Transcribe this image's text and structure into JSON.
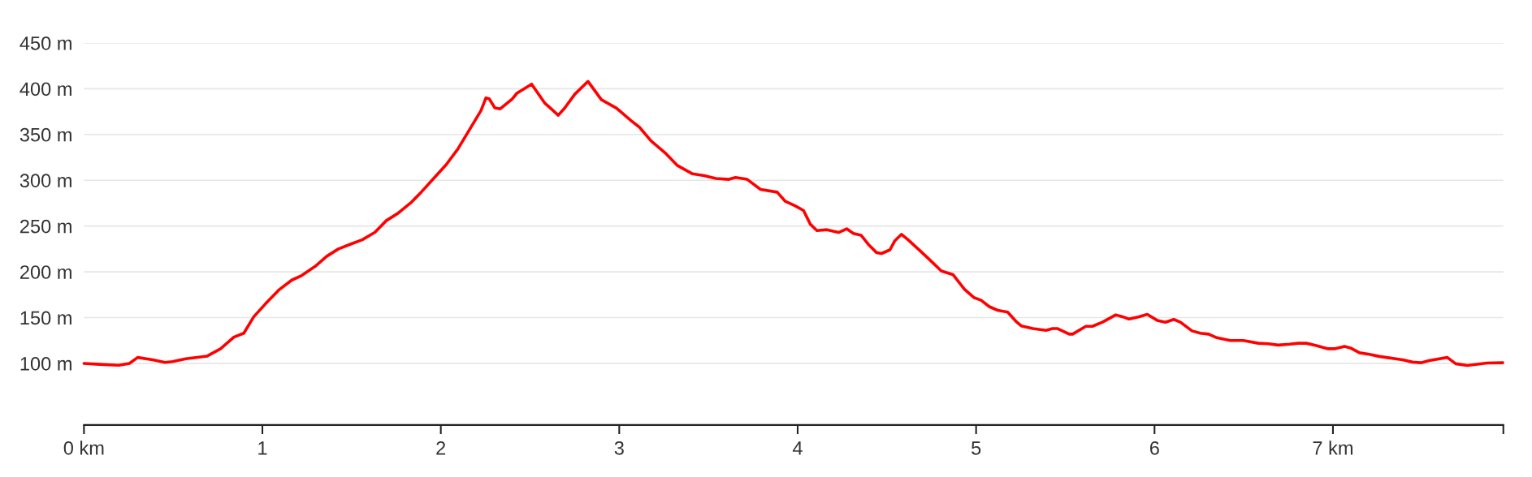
{
  "chart_data": {
    "type": "line",
    "xlim": [
      0,
      7.955
    ],
    "ylim": [
      32.7,
      450
    ],
    "xticks": [
      {
        "value": 0,
        "label": "0 km"
      },
      1,
      2,
      3,
      4,
      5,
      6,
      {
        "value": 7,
        "label": "7 km"
      },
      {
        "value": 7.955,
        "label": null
      }
    ],
    "yticks": [
      {
        "value": 100,
        "label": "100 m"
      },
      {
        "value": 150,
        "label": "150 m"
      },
      {
        "value": 200,
        "label": "200 m"
      },
      {
        "value": 250,
        "label": "250 m"
      },
      {
        "value": 300,
        "label": "300 m"
      },
      {
        "value": 350,
        "label": "350 m"
      },
      {
        "value": 400,
        "label": "400 m"
      },
      {
        "value": 450,
        "label": "450 m"
      }
    ],
    "grid": "y",
    "marker": "none",
    "line_style": "solid",
    "series": [
      {
        "color": "#ff0000",
        "x": [
          0,
          0.087,
          0.195,
          0.255,
          0.301,
          0.385,
          0.454,
          0.496,
          0.571,
          0.691,
          0.766,
          0.84,
          0.896,
          0.952,
          1.017,
          1.091,
          1.165,
          1.221,
          1.296,
          1.361,
          1.426,
          1.491,
          1.559,
          1.63,
          1.695,
          1.76,
          1.835,
          1.89,
          1.965,
          2.03,
          2.095,
          2.16,
          2.225,
          2.253,
          2.271,
          2.303,
          2.333,
          2.401,
          2.426,
          2.509,
          2.584,
          2.63,
          2.658,
          2.695,
          2.751,
          2.825,
          2.9,
          2.983,
          3.067,
          3.113,
          3.178,
          3.262,
          3.327,
          3.411,
          3.476,
          3.541,
          3.615,
          3.652,
          3.717,
          3.792,
          3.885,
          3.931,
          3.987,
          4.033,
          4.071,
          4.108,
          4.164,
          4.229,
          4.275,
          4.312,
          4.355,
          4.396,
          4.442,
          4.47,
          4.517,
          4.545,
          4.582,
          4.619,
          4.675,
          4.73,
          4.805,
          4.87,
          4.935,
          4.987,
          5.028,
          5.074,
          5.121,
          5.177,
          5.223,
          5.253,
          5.318,
          5.392,
          5.429,
          5.457,
          5.522,
          5.541,
          5.615,
          5.652,
          5.708,
          5.783,
          5.82,
          5.857,
          5.913,
          5.959,
          6.015,
          6.061,
          6.108,
          6.145,
          6.21,
          6.257,
          6.303,
          6.349,
          6.424,
          6.498,
          6.582,
          6.638,
          6.693,
          6.758,
          6.805,
          6.851,
          6.907,
          6.972,
          7.009,
          7.065,
          7.102,
          7.149,
          7.204,
          7.26,
          7.39,
          7.446,
          7.493,
          7.539,
          7.641,
          7.688,
          7.753,
          7.809,
          7.864,
          7.952
        ],
        "values": [
          100,
          99,
          98,
          100,
          106.5,
          104,
          101,
          102,
          105,
          108,
          116,
          128.6,
          133,
          151,
          165,
          180,
          191,
          196,
          206,
          217,
          225,
          230,
          235,
          243,
          256,
          264,
          276,
          287,
          303,
          317,
          334,
          355,
          376,
          390,
          389,
          379,
          378,
          389,
          395,
          405,
          384,
          376,
          371,
          379,
          394,
          408,
          388,
          379,
          365,
          358,
          343,
          329,
          316,
          307,
          305,
          302,
          301,
          303,
          301,
          290,
          287,
          277,
          272,
          267,
          252,
          245,
          246,
          243,
          247,
          242,
          240,
          230,
          221,
          220,
          224,
          234,
          241,
          235,
          225,
          215,
          201,
          197,
          181,
          172,
          169,
          162,
          158,
          156,
          146,
          141,
          138,
          136,
          138,
          138,
          132,
          132,
          140.5,
          140.5,
          145,
          153,
          151,
          148.5,
          151,
          153.5,
          147,
          145,
          148,
          145,
          135.5,
          133,
          132,
          128,
          125,
          125,
          122,
          121.5,
          120,
          121,
          122,
          122,
          119.5,
          116,
          116,
          118.5,
          116.5,
          111.6,
          110,
          107.6,
          104,
          101.4,
          100.7,
          103,
          106.5,
          99.6,
          97.8,
          99,
          100.4,
          100.7
        ]
      }
    ]
  }
}
